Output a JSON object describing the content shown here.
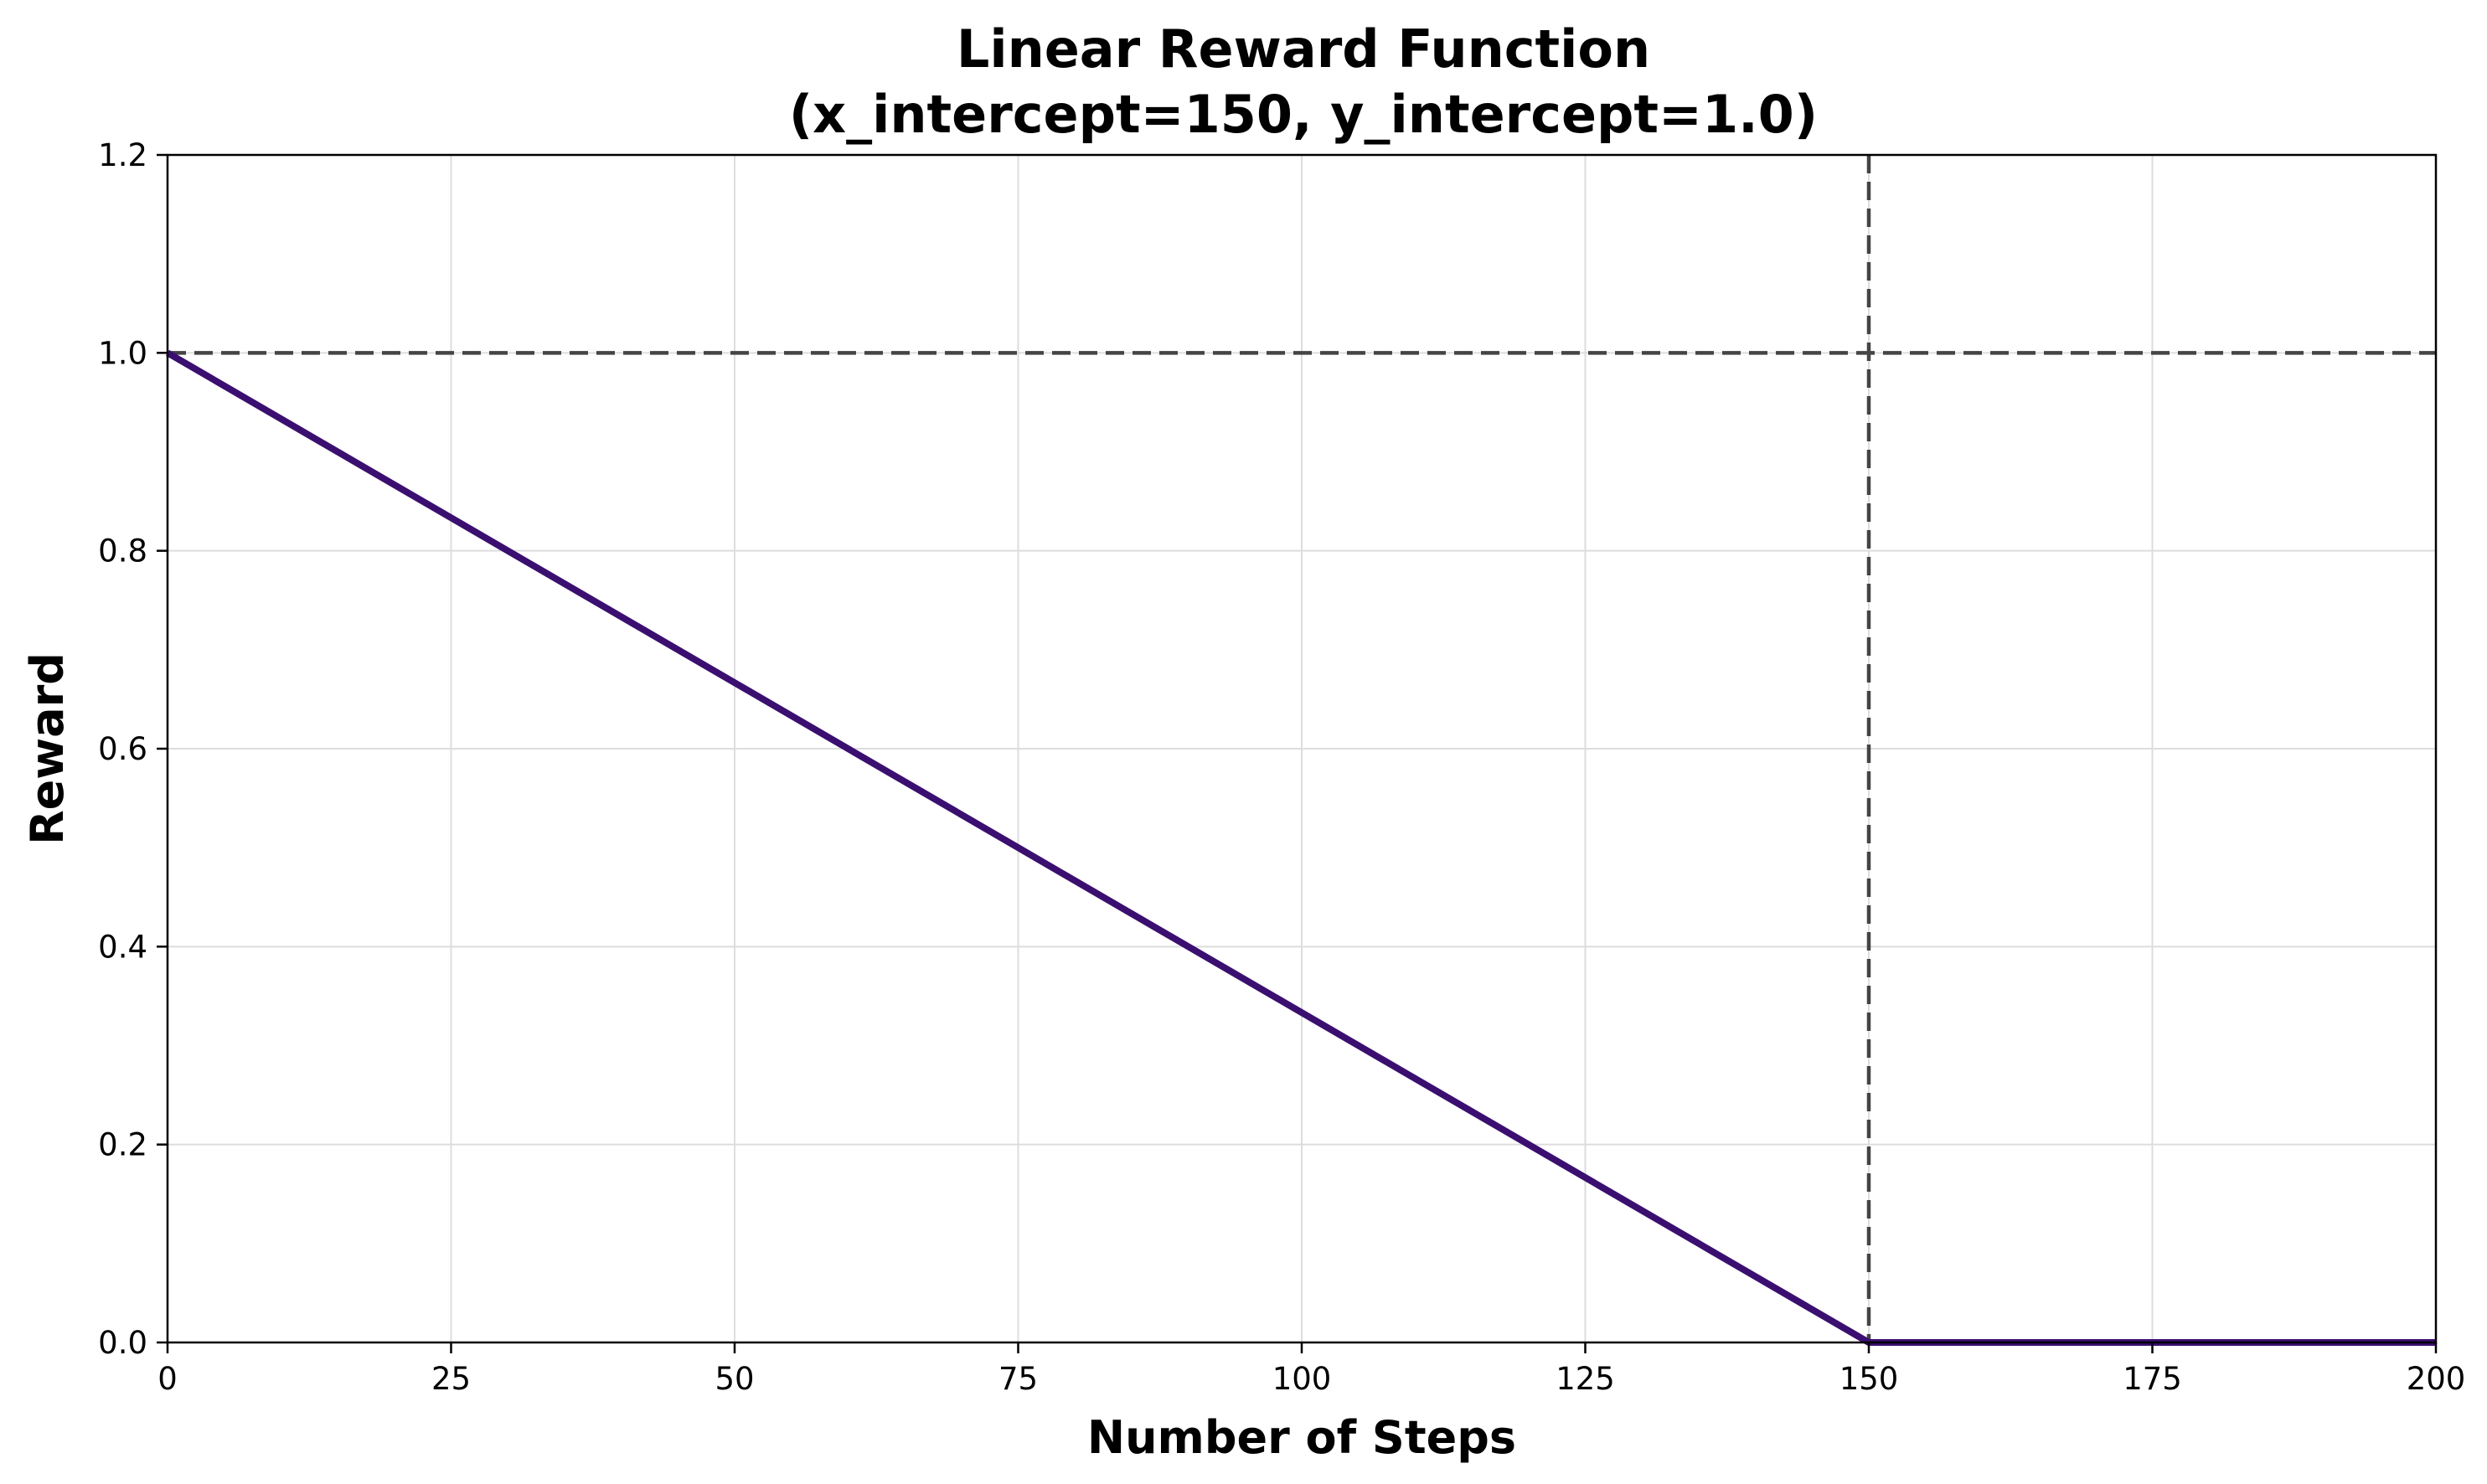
{
  "chart_data": {
    "type": "line",
    "title_line1": "Linear Reward Function",
    "title_line2": "(x_intercept=150, y_intercept=1.0)",
    "xlabel": "Number of Steps",
    "ylabel": "Reward",
    "xlim": [
      0,
      200
    ],
    "ylim": [
      0,
      1.2
    ],
    "x_ticks": [
      0,
      25,
      50,
      75,
      100,
      125,
      150,
      175,
      200
    ],
    "x_tick_labels": [
      "0",
      "25",
      "50",
      "75",
      "100",
      "125",
      "150",
      "175",
      "200"
    ],
    "y_ticks": [
      0.0,
      0.2,
      0.4,
      0.6,
      0.8,
      1.0,
      1.2
    ],
    "y_tick_labels": [
      "0.0",
      "0.2",
      "0.4",
      "0.6",
      "0.8",
      "1.0",
      "1.2"
    ],
    "grid": true,
    "series": [
      {
        "x": [
          0,
          150,
          200
        ],
        "y": [
          1.0,
          0.0,
          0.0
        ],
        "color": "#3b0f70"
      }
    ],
    "reference_lines": [
      {
        "orientation": "horizontal",
        "value": 1.0,
        "style": "dashed",
        "color": "#444444"
      },
      {
        "orientation": "vertical",
        "value": 150,
        "style": "dashed",
        "color": "#444444"
      }
    ]
  }
}
